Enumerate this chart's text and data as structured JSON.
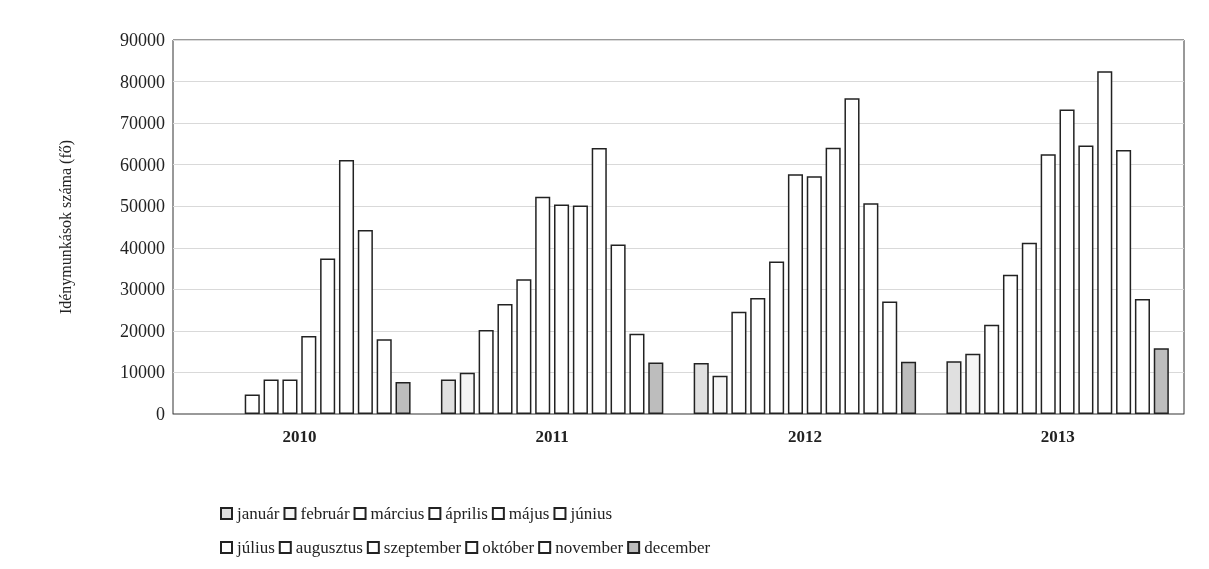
{
  "chart_data": {
    "type": "bar",
    "ylabel": "Idénymunkások száma (fő)",
    "categories": [
      "2010",
      "2011",
      "2012",
      "2013"
    ],
    "ylim": [
      0,
      90000
    ],
    "yticks": [
      0,
      10000,
      20000,
      30000,
      40000,
      50000,
      60000,
      70000,
      80000,
      90000
    ],
    "grid": "y",
    "legend": "bottom",
    "series": [
      {
        "name": "január",
        "color": "#e0e0e0",
        "values": [
          null,
          8300,
          12300,
          12700
        ]
      },
      {
        "name": "február",
        "color": "#f5f5f5",
        "values": [
          null,
          9900,
          9200,
          14500
        ]
      },
      {
        "name": "március",
        "color": "#ffffff",
        "values": [
          null,
          20200,
          24600,
          21500
        ]
      },
      {
        "name": "április",
        "color": "#ffffff",
        "values": [
          4700,
          26500,
          27900,
          33500
        ]
      },
      {
        "name": "május",
        "color": "#ffffff",
        "values": [
          8300,
          32400,
          36700,
          41200
        ]
      },
      {
        "name": "június",
        "color": "#ffffff",
        "values": [
          8300,
          52300,
          57700,
          62500
        ]
      },
      {
        "name": "július",
        "color": "#ffffff",
        "values": [
          18800,
          50400,
          57200,
          73300
        ]
      },
      {
        "name": "augusztus",
        "color": "#ffffff",
        "values": [
          37400,
          50200,
          64100,
          64600
        ]
      },
      {
        "name": "szeptember",
        "color": "#ffffff",
        "values": [
          61100,
          64000,
          76000,
          82500
        ]
      },
      {
        "name": "október",
        "color": "#ffffff",
        "values": [
          44300,
          40800,
          50700,
          63500
        ]
      },
      {
        "name": "november",
        "color": "#ffffff",
        "values": [
          18000,
          19300,
          27100,
          27700
        ]
      },
      {
        "name": "december",
        "color": "#bdbdbd",
        "values": [
          7700,
          12400,
          12600,
          15800
        ]
      }
    ]
  }
}
